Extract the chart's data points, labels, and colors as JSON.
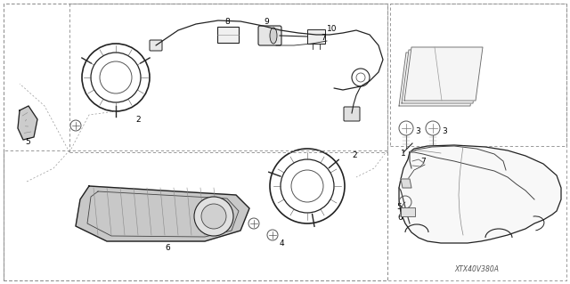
{
  "background_color": "#ffffff",
  "fig_width": 6.4,
  "fig_height": 3.19,
  "dpi": 100,
  "watermark": "XTX40V380A",
  "label_color": "#000000",
  "label_fontsize": 6.5,
  "dashed_color": "#777777",
  "line_color": "#222222"
}
